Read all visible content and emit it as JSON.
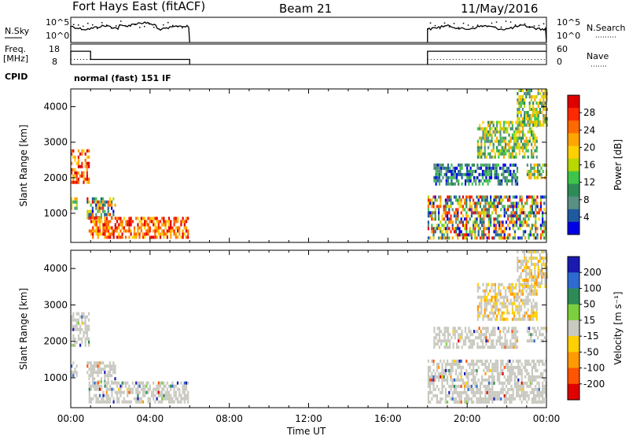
{
  "header": {
    "station": "Fort Hays East (fitACF)",
    "beam": "Beam 21",
    "date": "11/May/2016"
  },
  "nsky_panel": {
    "left_label": "N.Sky",
    "left_ticks": [
      "10^5",
      "10^0"
    ],
    "right_label": "N.Search",
    "right_ticks": [
      "10^5",
      "10^0"
    ],
    "active_hours": [
      [
        0,
        6
      ],
      [
        18,
        24
      ]
    ]
  },
  "freq_panel": {
    "left_label_1": "Freq.",
    "left_label_2": "[MHz]",
    "left_ticks": [
      18,
      8
    ],
    "right_label": "Nave",
    "right_ticks": [
      60,
      0
    ],
    "freq_level_mhz": [
      {
        "from": 0,
        "to": 1,
        "value": 14.5
      },
      {
        "from": 1,
        "to": 6,
        "value": 10.5
      },
      {
        "from": 18,
        "to": 24,
        "value": 14.5
      }
    ],
    "nave_level": [
      {
        "from": 0,
        "to": 6,
        "value": 15
      },
      {
        "from": 18,
        "to": 24,
        "value": 15
      }
    ]
  },
  "cpid": {
    "label": "CPID",
    "text": "normal (fast) 151 IF"
  },
  "chart_data": [
    {
      "type": "heatmap",
      "title": "",
      "xlabel": "Time UT",
      "ylabel": "Slant Range [km]",
      "xlim": [
        0,
        24
      ],
      "ylim": [
        180,
        4500
      ],
      "xticks": [
        "00:00",
        "04:00",
        "08:00",
        "12:00",
        "16:00",
        "20:00",
        "00:00"
      ],
      "yticks": [
        1000,
        2000,
        3000,
        4000
      ],
      "colorbar": {
        "label": "Power [dB]",
        "ticks": [
          "28",
          "24",
          "20",
          "16",
          "12",
          "8",
          "4"
        ],
        "colors": [
          "#e00000",
          "#ff2a00",
          "#ff6a00",
          "#ffa500",
          "#ffd000",
          "#b8d800",
          "#3fc44a",
          "#2e8b57",
          "#5a8f84",
          "#1f5aa0",
          "#0000e6"
        ]
      },
      "regions": [
        {
          "t": [
            0.0,
            0.9
          ],
          "r": [
            1900,
            2800
          ],
          "level": "high"
        },
        {
          "t": [
            0.0,
            0.3
          ],
          "r": [
            1100,
            1450
          ],
          "level": "mid"
        },
        {
          "t": [
            0.8,
            2.2
          ],
          "r": [
            900,
            1450
          ],
          "level": "mixed"
        },
        {
          "t": [
            0.9,
            5.9
          ],
          "r": [
            300,
            900
          ],
          "level": "high"
        },
        {
          "t": [
            18.0,
            24.0
          ],
          "r": [
            300,
            1500
          ],
          "level": "mixed"
        },
        {
          "t": [
            18.3,
            22.5
          ],
          "r": [
            1800,
            2400
          ],
          "level": "low"
        },
        {
          "t": [
            20.5,
            23.5
          ],
          "r": [
            2600,
            3600
          ],
          "level": "mid"
        },
        {
          "t": [
            22.5,
            24.0
          ],
          "r": [
            3500,
            4500
          ],
          "level": "mid"
        },
        {
          "t": [
            23.0,
            24.0
          ],
          "r": [
            2000,
            2400
          ],
          "level": "mid"
        }
      ]
    },
    {
      "type": "heatmap",
      "title": "",
      "xlabel": "Time UT",
      "ylabel": "Slant Range [km]",
      "xlim": [
        0,
        24
      ],
      "ylim": [
        180,
        4500
      ],
      "xticks": [
        "00:00",
        "04:00",
        "08:00",
        "12:00",
        "16:00",
        "20:00",
        "00:00"
      ],
      "yticks": [
        1000,
        2000,
        3000,
        4000
      ],
      "colorbar": {
        "label": "Velocity [m s⁻¹]",
        "ticks": [
          "200",
          "100",
          "50",
          "15",
          "-15",
          "-50",
          "-100",
          "-200"
        ],
        "colors": [
          "#1a1ab0",
          "#2e6bd0",
          "#2e8b57",
          "#7ccf3c",
          "#c9c9c0",
          "#ffd000",
          "#ff9a00",
          "#ff5500",
          "#e00000"
        ]
      },
      "regions": [
        {
          "t": [
            0.0,
            0.9
          ],
          "r": [
            1900,
            2800
          ],
          "level": "ground"
        },
        {
          "t": [
            0.0,
            0.3
          ],
          "r": [
            1100,
            1450
          ],
          "level": "ground"
        },
        {
          "t": [
            0.8,
            2.2
          ],
          "r": [
            900,
            1450
          ],
          "level": "ground"
        },
        {
          "t": [
            0.9,
            5.9
          ],
          "r": [
            300,
            900
          ],
          "level": "ground"
        },
        {
          "t": [
            18.0,
            24.0
          ],
          "r": [
            300,
            1500
          ],
          "level": "ground"
        },
        {
          "t": [
            18.3,
            22.5
          ],
          "r": [
            1800,
            2400
          ],
          "level": "ground"
        },
        {
          "t": [
            20.5,
            23.5
          ],
          "r": [
            2600,
            3600
          ],
          "level": "negative"
        },
        {
          "t": [
            22.5,
            24.0
          ],
          "r": [
            3500,
            4500
          ],
          "level": "negative"
        },
        {
          "t": [
            23.0,
            24.0
          ],
          "r": [
            2000,
            2400
          ],
          "level": "ground"
        }
      ]
    }
  ]
}
